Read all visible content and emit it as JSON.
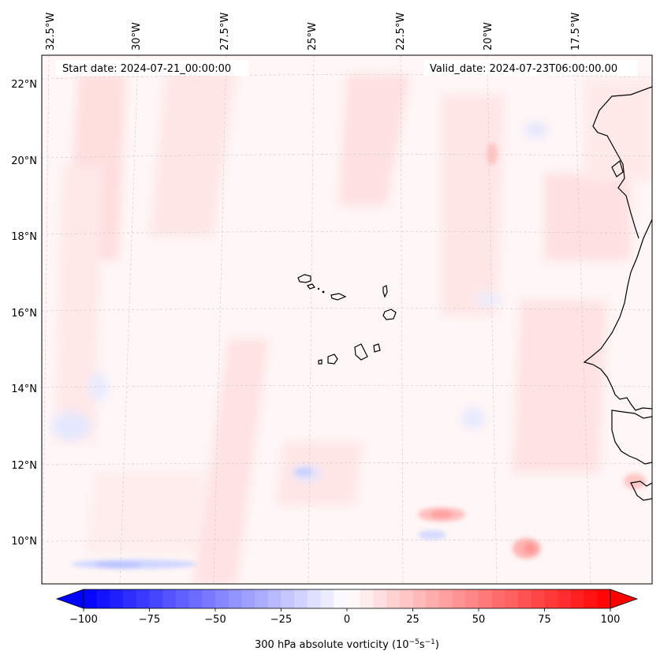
{
  "header": {
    "start_date": "Start date: 2024-07-21_00:00:00",
    "valid_date": "Valid_date: 2024-07-23T06:00:00.00"
  },
  "map": {
    "region": "Eastern tropical Atlantic / Cabo Verde and West African coast",
    "lon_labels": [
      "32.5°W",
      "30°W",
      "27.5°W",
      "25°W",
      "22.5°W",
      "20°W",
      "17.5°W"
    ],
    "lat_labels": [
      "22°N",
      "20°N",
      "18°N",
      "16°N",
      "14°N",
      "12°N",
      "10°N"
    ]
  },
  "colorbar": {
    "label": "300 hPa absolute vorticity (10",
    "label_exp1": "−5",
    "label_mid": "s",
    "label_exp2": "−1",
    "label_end": ")",
    "ticks": [
      "−100",
      "−75",
      "−50",
      "−25",
      "0",
      "25",
      "50",
      "75",
      "100"
    ],
    "min": -100,
    "max": 100,
    "levels": 40,
    "negative_color": "#0000ff",
    "positive_color": "#ff0000",
    "neutral_color": "#ffffff"
  }
}
